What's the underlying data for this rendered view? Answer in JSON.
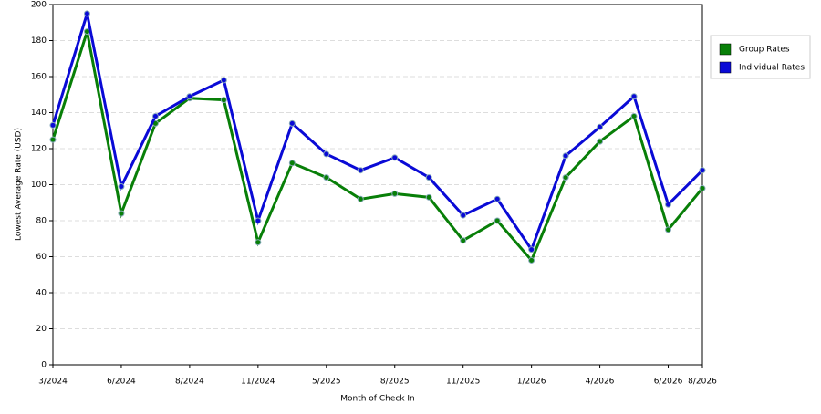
{
  "chart_data": {
    "type": "line",
    "x_label": "Month of Check In",
    "y_label": "Lowest Average Rate (USD)",
    "categories": [
      "3/2024",
      null,
      "6/2024",
      null,
      "8/2024",
      null,
      "11/2024",
      null,
      "5/2025",
      null,
      "8/2025",
      null,
      "11/2025",
      null,
      "1/2026",
      null,
      "4/2026",
      null,
      "6/2026",
      "8/2026"
    ],
    "series": [
      {
        "name": "Group Rates",
        "color": "#087f08",
        "values": [
          125,
          185,
          84,
          134,
          148,
          147,
          68,
          112,
          104,
          92,
          95,
          93,
          69,
          80,
          58,
          104,
          124,
          138,
          75,
          98
        ]
      },
      {
        "name": "Individual Rates",
        "color": "#0a0ad6",
        "values": [
          133,
          195,
          99,
          138,
          149,
          158,
          80,
          134,
          117,
          108,
          115,
          104,
          83,
          92,
          64,
          116,
          132,
          149,
          89,
          108
        ]
      }
    ],
    "ylim": [
      0,
      200
    ],
    "yticks": [
      0,
      20,
      40,
      60,
      80,
      100,
      120,
      140,
      160,
      180,
      200
    ],
    "grid": true,
    "legend": "right"
  }
}
